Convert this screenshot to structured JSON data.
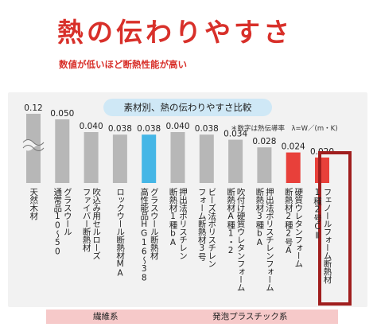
{
  "title": "熱の伝わりやすさ",
  "subtitle": "数値が低いほど断熱性能が高い",
  "comparison_title": "素材別、熱の伝わりやすさ比較",
  "note": "＊数字は熱伝導率　λ=W／(m・K)",
  "colors": {
    "accent_red": "#d8302a",
    "bar_gray": "#b7b7b7",
    "bar_blue": "#45b6e6",
    "bar_red": "#e8403a",
    "highlight_border": "#a01e1e"
  },
  "chart_data": {
    "type": "bar",
    "title": "素材別、熱の伝わりやすさ比較",
    "categories": [
      [
        "天然木材"
      ],
      [
        "グラスウール",
        "通常品10～50"
      ],
      [
        "吹込み用セルローズ",
        "ファイバー断熱材"
      ],
      [
        "ロックウール断熱材MA"
      ],
      [
        "グラスウール断熱材",
        "高性能品HG16～38"
      ],
      [
        "押出法ポリスチレン",
        "断熱材1種bA"
      ],
      [
        "ビーズ法ポリスチレン",
        "フォーム断熱材3号"
      ],
      [
        "吹付け硬質ウレタンフォーム",
        "断熱材A種1・2"
      ],
      [
        "押出法ポリスチレンフォーム",
        "断熱材3種bA"
      ],
      [
        "硬質ウレタンフォーム",
        "断熱材2種2号A"
      ],
      [
        "フェノールフォーム断熱材",
        "1種2号CⅡ"
      ]
    ],
    "values": [
      "0.12",
      "0.050",
      "0.040",
      "0.038",
      "0.038",
      "0.040",
      "0.038",
      "0.034",
      "0.028",
      "0.024",
      "0.020"
    ],
    "bar_colors": [
      "gray",
      "gray",
      "gray",
      "gray",
      "blue",
      "gray",
      "gray",
      "gray",
      "gray",
      "red",
      "red"
    ],
    "highlighted_index": 10,
    "axis_break_on_first": true,
    "groups": [
      {
        "label": "繊維系",
        "from": 1,
        "to": 4
      },
      {
        "label": "発泡プラスチック系",
        "from": 5,
        "to": 10
      }
    ]
  }
}
